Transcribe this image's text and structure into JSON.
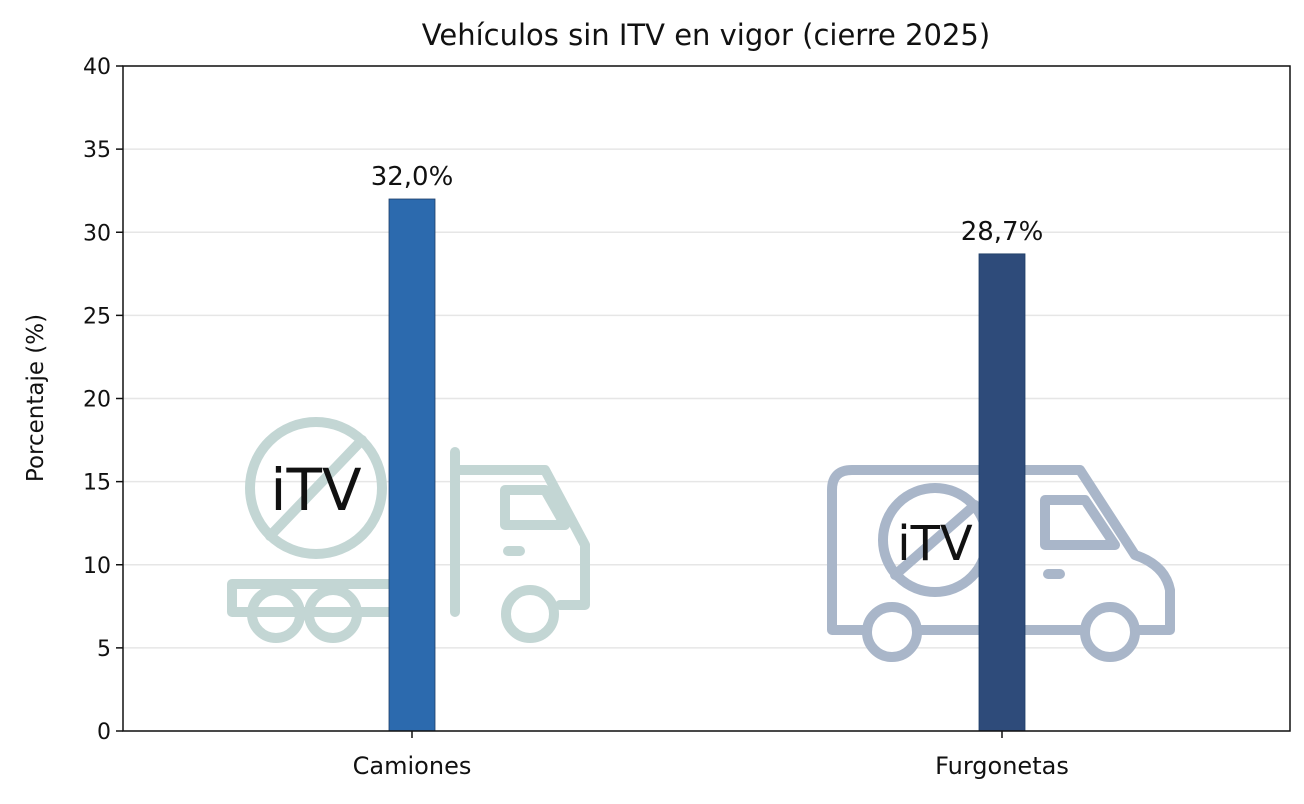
{
  "chart_data": {
    "type": "bar",
    "title": "Vehículos sin ITV en vigor (cierre 2025)",
    "xlabel": "",
    "ylabel": "Porcentaje (%)",
    "ylim": [
      0,
      40
    ],
    "yticks": [
      0,
      5,
      10,
      15,
      20,
      25,
      30,
      35,
      40
    ],
    "grid": "horizontal",
    "categories": [
      "Camiones",
      "Furgonetas"
    ],
    "values": [
      32.0,
      28.7
    ],
    "data_labels": [
      "32,0%",
      "28,7%"
    ],
    "colors": [
      "#2c6aae",
      "#2e4b7a"
    ],
    "watermark_icons": [
      "truck-no-itv-icon",
      "van-no-itv-icon"
    ],
    "watermark_text": "iTV"
  }
}
